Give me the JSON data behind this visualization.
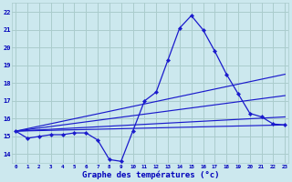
{
  "title": "Graphe des températures (°c)",
  "bg_color": "#cce8ee",
  "grid_color": "#aacccc",
  "line_color": "#1a1acc",
  "tick_color": "#0000bb",
  "ylim": [
    13.5,
    22.5
  ],
  "xlim": [
    -0.3,
    23.3
  ],
  "yticks": [
    14,
    15,
    16,
    17,
    18,
    19,
    20,
    21,
    22
  ],
  "xticks": [
    0,
    1,
    2,
    3,
    4,
    5,
    6,
    7,
    8,
    9,
    10,
    11,
    12,
    13,
    14,
    15,
    16,
    17,
    18,
    19,
    20,
    21,
    22,
    23
  ],
  "main_x": [
    0,
    1,
    2,
    3,
    4,
    5,
    6,
    7,
    8,
    9,
    10,
    11,
    12,
    13,
    14,
    15,
    16,
    17,
    18,
    19,
    20,
    21,
    22,
    23
  ],
  "main_y": [
    15.3,
    14.9,
    15.0,
    15.1,
    15.1,
    15.2,
    15.2,
    14.8,
    13.7,
    13.6,
    15.3,
    17.0,
    17.5,
    19.3,
    21.1,
    21.8,
    21.0,
    19.8,
    18.5,
    17.4,
    16.3,
    16.1,
    15.7,
    15.65
  ],
  "trend_lines": [
    {
      "x": [
        0,
        23
      ],
      "y": [
        15.3,
        15.65
      ]
    },
    {
      "x": [
        0,
        23
      ],
      "y": [
        15.3,
        16.1
      ]
    },
    {
      "x": [
        0,
        23
      ],
      "y": [
        15.3,
        17.3
      ]
    },
    {
      "x": [
        0,
        23
      ],
      "y": [
        15.3,
        18.5
      ]
    }
  ]
}
